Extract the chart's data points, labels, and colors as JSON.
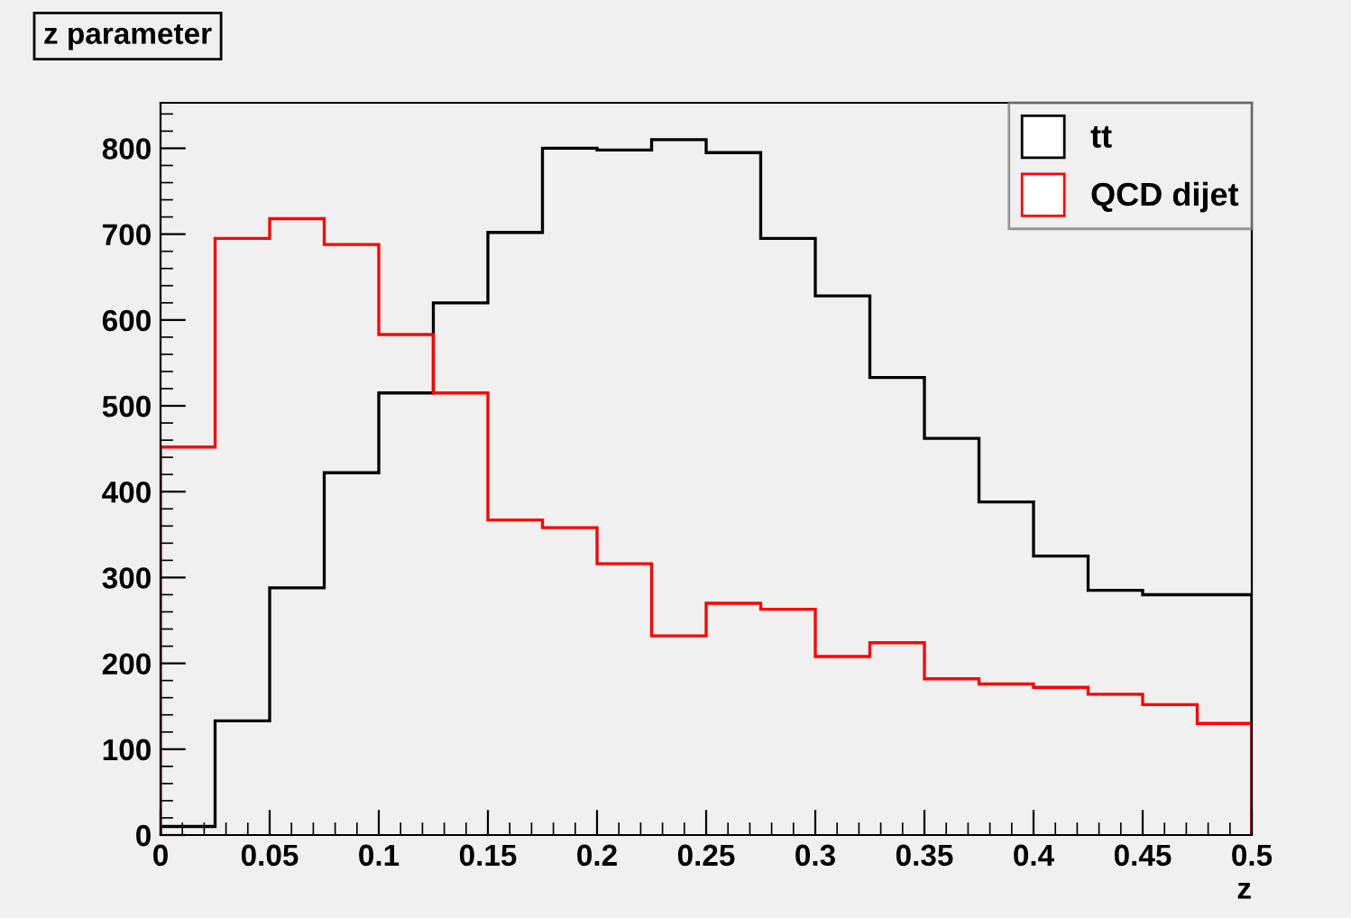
{
  "chart_data": {
    "type": "histogram",
    "title": "z parameter",
    "xlabel": "z",
    "bins": [
      0,
      0.025,
      0.05,
      0.075,
      0.1,
      0.125,
      0.15,
      0.175,
      0.2,
      0.225,
      0.25,
      0.275,
      0.3,
      0.325,
      0.35,
      0.375,
      0.4,
      0.425,
      0.45,
      0.475,
      0.5
    ],
    "series": [
      {
        "name": "tt",
        "color": "#000000",
        "values": [
          10,
          133,
          288,
          422,
          515,
          620,
          702,
          800,
          798,
          810,
          795,
          695,
          628,
          533,
          462,
          388,
          325,
          285,
          280,
          280
        ]
      },
      {
        "name": "QCD dijet",
        "color": "#ff0000",
        "values": [
          452,
          695,
          718,
          688,
          583,
          515,
          367,
          358,
          316,
          232,
          270,
          263,
          208,
          224,
          182,
          176,
          172,
          164,
          152,
          130
        ]
      }
    ],
    "xlim": [
      0,
      0.5
    ],
    "ylim": [
      0,
      853
    ],
    "xticks": [
      0,
      0.05,
      0.1,
      0.15,
      0.2,
      0.25,
      0.3,
      0.35,
      0.4,
      0.45,
      0.5
    ],
    "yticks": [
      0,
      100,
      200,
      300,
      400,
      500,
      600,
      700,
      800
    ],
    "grid": false,
    "legend": "top right"
  }
}
